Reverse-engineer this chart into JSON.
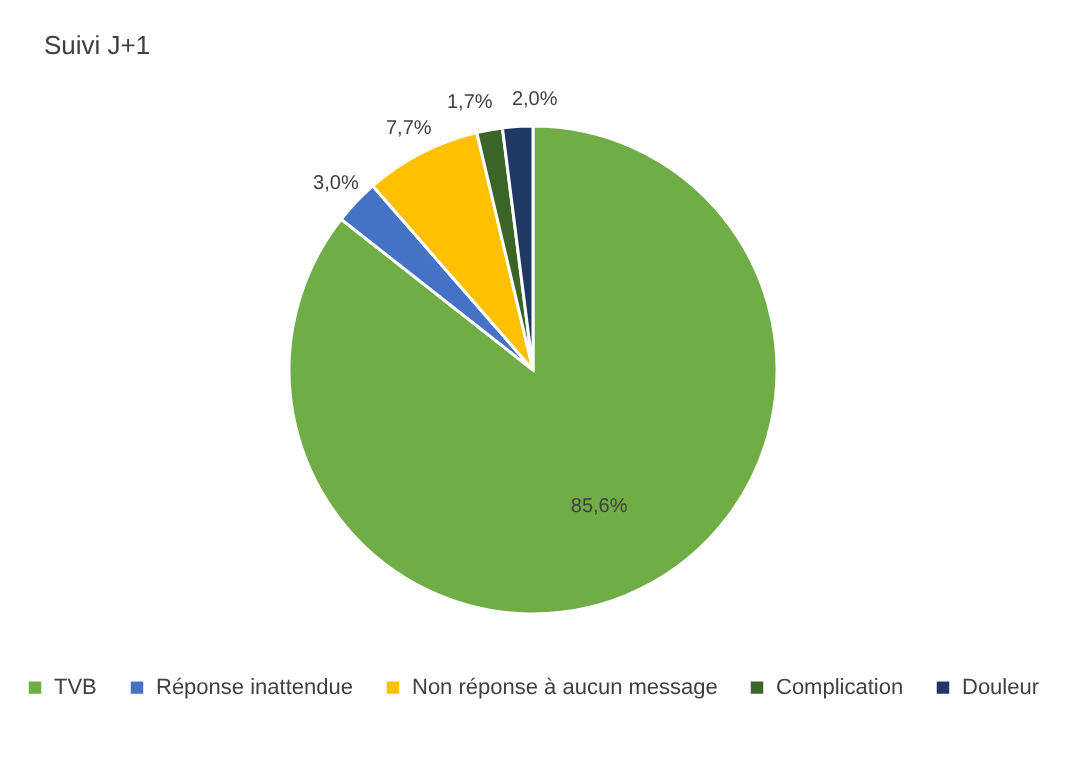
{
  "chart_data": {
    "type": "pie",
    "title": "Suivi J+1",
    "categories": [
      "TVB",
      "Réponse inattendue",
      "Non réponse à aucun message",
      "Complication",
      "Douleur"
    ],
    "values": [
      85.6,
      3.0,
      7.7,
      1.7,
      2.0
    ],
    "colors": [
      "#70ad47",
      "#4472c4",
      "#ffc000",
      "#3b6427",
      "#203864"
    ],
    "value_labels": [
      "85,6%",
      "3,0%",
      "7,7%",
      "1,7%",
      "2,0%"
    ],
    "legend": "bottom"
  }
}
